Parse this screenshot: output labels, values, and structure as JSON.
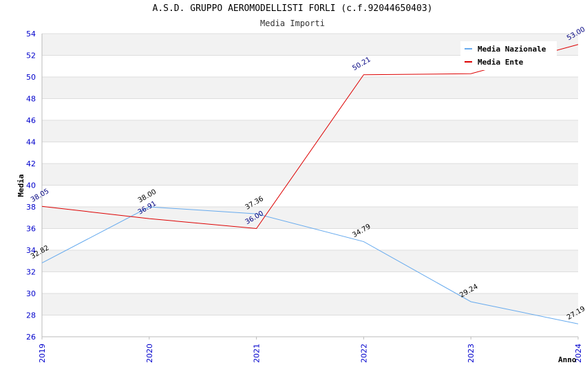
{
  "header": {
    "title": "A.S.D. GRUPPO AEROMODELLISTI FORLI (c.f.92044650403)",
    "subtitle": "Media Importi"
  },
  "chart_data": {
    "type": "line",
    "title": "A.S.D. GRUPPO AEROMODELLISTI FORLI (c.f.92044650403)",
    "subtitle": "Media Importi",
    "xlabel": "Anno",
    "ylabel": "Media",
    "x": [
      "2019",
      "2020",
      "2021",
      "2022",
      "2023",
      "2024"
    ],
    "ylim": [
      26,
      54
    ],
    "yticks": [
      26,
      28,
      30,
      32,
      34,
      36,
      38,
      40,
      42,
      44,
      46,
      48,
      50,
      52,
      54
    ],
    "grid": true,
    "legend_position": "top-right",
    "series": [
      {
        "name": "Media Nazionale",
        "color": "#66aaee",
        "label_color": "#000000",
        "values": [
          32.82,
          38.0,
          37.36,
          34.79,
          29.24,
          27.19
        ],
        "labels": [
          "32.82",
          "38.00",
          "37.36",
          "34.79",
          "29.24",
          "27.19"
        ]
      },
      {
        "name": "Media Ente",
        "color": "#dd0000",
        "label_color": "#000080",
        "values": [
          38.05,
          36.91,
          36.0,
          50.21,
          50.3,
          53.0
        ],
        "labels": [
          "38.05",
          "36.91",
          "36.00",
          "50.21",
          "",
          "53.00"
        ]
      }
    ]
  }
}
